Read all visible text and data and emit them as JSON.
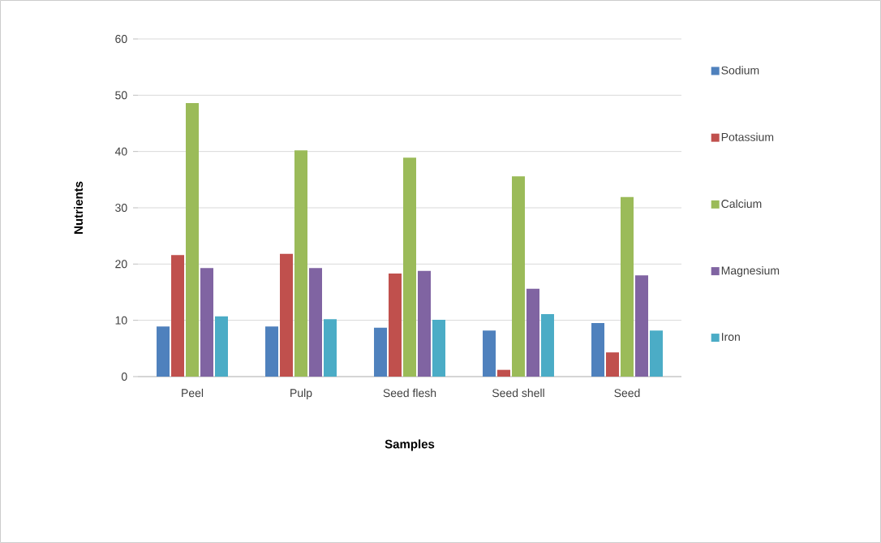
{
  "chart_data": {
    "type": "bar",
    "xlabel": "Samples",
    "ylabel": "Nutrients",
    "categories": [
      "Peel",
      "Pulp",
      "Seed flesh",
      "Seed shell",
      "Seed"
    ],
    "series": [
      {
        "name": "Sodium",
        "color": "#4f81bd",
        "values": [
          8.9,
          8.9,
          8.7,
          8.2,
          9.5
        ]
      },
      {
        "name": "Potassium",
        "color": "#c0504d",
        "values": [
          21.6,
          21.8,
          18.3,
          1.2,
          4.3
        ]
      },
      {
        "name": "Calcium",
        "color": "#9bbb59",
        "values": [
          48.6,
          40.2,
          38.9,
          35.6,
          31.9
        ]
      },
      {
        "name": "Magnesium",
        "color": "#8064a2",
        "values": [
          19.3,
          19.3,
          18.8,
          15.6,
          18.0
        ]
      },
      {
        "name": "Iron",
        "color": "#4bacc6",
        "values": [
          10.7,
          10.2,
          10.1,
          11.1,
          8.2
        ]
      }
    ],
    "ylim": [
      0,
      60
    ],
    "yticks": [
      0,
      10,
      20,
      30,
      40,
      50,
      60
    ],
    "grid": "y",
    "legend": "right"
  }
}
